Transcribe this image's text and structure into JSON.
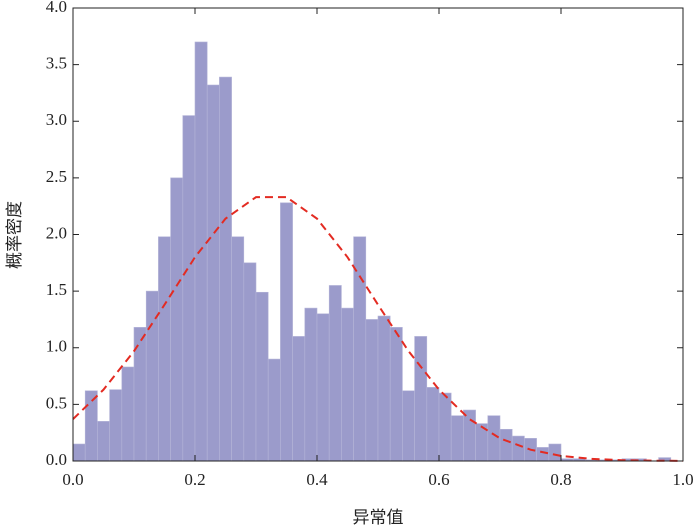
{
  "chart_data": {
    "type": "histogram",
    "x_label": "异常值",
    "y_label": "概率密度",
    "bins": [
      0,
      0.02,
      0.04,
      0.06,
      0.08,
      0.1,
      0.12,
      0.14,
      0.16,
      0.18,
      0.2,
      0.22,
      0.24,
      0.26,
      0.28,
      0.3,
      0.32,
      0.34,
      0.36,
      0.38,
      0.4,
      0.42,
      0.44,
      0.46,
      0.48,
      0.5,
      0.52,
      0.54,
      0.56,
      0.58,
      0.6,
      0.62,
      0.64,
      0.66,
      0.68,
      0.7,
      0.72,
      0.74,
      0.76,
      0.78,
      0.8,
      0.82,
      0.84,
      0.86,
      0.88,
      0.9,
      0.92,
      0.94,
      0.96,
      0.98
    ],
    "values": [
      0.15,
      0.62,
      0.35,
      0.63,
      0.83,
      1.18,
      1.5,
      1.98,
      2.5,
      3.05,
      3.7,
      3.32,
      3.39,
      1.98,
      1.75,
      1.49,
      0.9,
      2.28,
      1.1,
      1.35,
      1.3,
      1.55,
      1.35,
      1.98,
      1.25,
      1.28,
      1.18,
      0.62,
      1.1,
      0.65,
      0.6,
      0.4,
      0.45,
      0.33,
      0.4,
      0.28,
      0.22,
      0.2,
      0.12,
      0.15,
      0.02,
      0.02,
      0.01,
      0.01,
      0.01,
      0.02,
      0.02,
      0,
      0.03
    ],
    "color": "#9b9bcb",
    "curve": {
      "x": [
        0,
        0.05,
        0.1,
        0.15,
        0.2,
        0.25,
        0.3,
        0.35,
        0.4,
        0.45,
        0.5,
        0.55,
        0.6,
        0.65,
        0.7,
        0.75,
        0.8,
        0.85,
        0.9,
        0.95,
        1.0
      ],
      "values": [
        0.37,
        0.63,
        0.97,
        1.38,
        1.8,
        2.14,
        2.33,
        2.33,
        2.14,
        1.8,
        1.38,
        0.97,
        0.63,
        0.37,
        0.2,
        0.1,
        0.045,
        0.019,
        0.007,
        0.003,
        0.001
      ],
      "color": "#e32b22",
      "dashed": true
    },
    "xlim": [
      0,
      1.0
    ],
    "xticks": [
      {
        "value": 0,
        "label": "0.0"
      },
      0.2,
      0.4,
      0.6,
      0.8,
      {
        "value": 1.0,
        "label": "1.0"
      }
    ],
    "ylim": [
      0,
      4.0
    ],
    "yticks": [
      {
        "value": 0,
        "label": "0.0"
      },
      0.5,
      {
        "value": 1,
        "label": "1.0"
      },
      1.5,
      {
        "value": 2,
        "label": "2.0"
      },
      2.5,
      {
        "value": 3,
        "label": "3.0"
      },
      3.5,
      {
        "value": 4,
        "label": "4.0"
      }
    ]
  }
}
